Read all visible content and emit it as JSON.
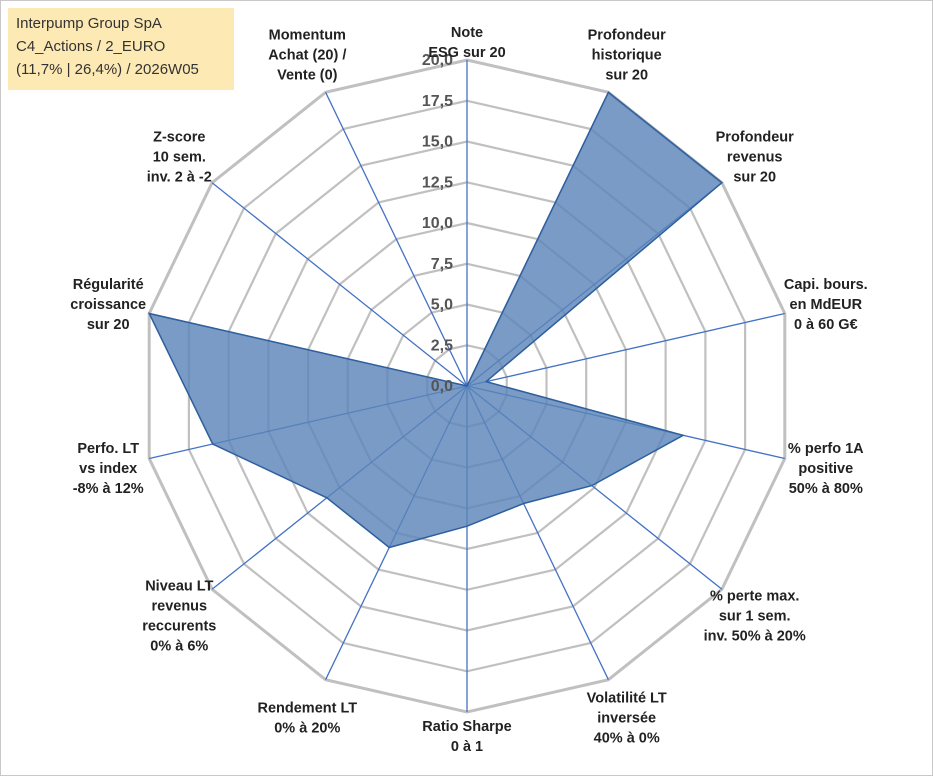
{
  "info": {
    "company": "Interpump Group SpA",
    "portfolio": "C4_Actions / 2_EURO",
    "period": "(11,7% | 26,4%) / 2026W05"
  },
  "colors": {
    "grid": "#c0c0c0",
    "axis": "#4472c4",
    "fill": "#5b85b9",
    "stroke": "#2e5f9e"
  },
  "chart_data": {
    "type": "radar",
    "title": "Interpump Group SpA",
    "rmin": 0,
    "rmax": 20,
    "tick_step": 2.5,
    "tick_labels": [
      "0,0",
      "2,5",
      "5,0",
      "7,5",
      "10,0",
      "12,5",
      "15,0",
      "17,5",
      "20,0"
    ],
    "categories": [
      [
        "Note",
        "ESG sur 20"
      ],
      [
        "Profondeur",
        "historique",
        "sur 20"
      ],
      [
        "Profondeur",
        "revenus",
        "sur 20"
      ],
      [
        "Capi. bours.",
        "en MdEUR",
        "0 à 60 G€"
      ],
      [
        "% perfo 1A",
        "positive",
        "50% à 80%"
      ],
      [
        "% perte max.",
        "sur 1 sem.",
        "inv. 50% à 20%"
      ],
      [
        "Volatilité LT",
        "inversée",
        "40% à 0%"
      ],
      [
        "Ratio Sharpe",
        "0 à 1"
      ],
      [
        "Rendement LT",
        "0% à 20%"
      ],
      [
        "Niveau LT",
        "revenus",
        "reccurents",
        "0% à 6%"
      ],
      [
        "Perfo. LT",
        "vs index",
        "-8% à 12%"
      ],
      [
        "Régularité",
        "croissance",
        "sur 20"
      ],
      [
        "Z-score",
        "10 sem.",
        "inv. 2 à -2"
      ],
      [
        "Momentum",
        "Achat (20) /",
        "Vente (0)"
      ]
    ],
    "series": [
      {
        "name": "Interpump Group SpA",
        "values": [
          0,
          20,
          20,
          1.2,
          13.6,
          9.8,
          8.0,
          8.6,
          11.0,
          11.0,
          16.0,
          20.0,
          0,
          0
        ]
      }
    ],
    "grid": true,
    "legend": "none"
  }
}
